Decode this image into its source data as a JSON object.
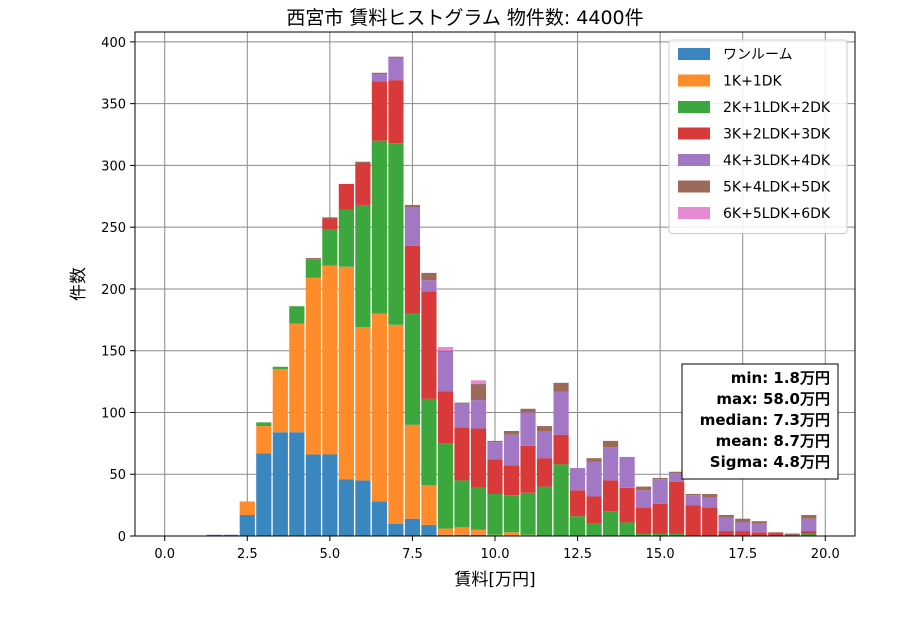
{
  "chart_data": {
    "type": "bar",
    "stacked": true,
    "title": "西宮市 賃料ヒストグラム 物件数: 4400件",
    "xlabel": "賃料[万円]",
    "ylabel": "件数",
    "xlim": [
      -0.9,
      20.9
    ],
    "ylim": [
      0,
      408
    ],
    "xticks": [
      0.0,
      2.5,
      5.0,
      7.5,
      10.0,
      12.5,
      15.0,
      17.5,
      20.0
    ],
    "xtick_labels": [
      "0.0",
      "2.5",
      "5.0",
      "7.5",
      "10.0",
      "12.5",
      "15.0",
      "17.5",
      "20.0"
    ],
    "yticks": [
      0,
      50,
      100,
      150,
      200,
      250,
      300,
      350,
      400
    ],
    "ytick_labels": [
      "0",
      "50",
      "100",
      "150",
      "200",
      "250",
      "300",
      "350",
      "400"
    ],
    "grid": true,
    "legend_position": "top-right",
    "bin_width": 0.5,
    "x": [
      1.5,
      2.0,
      2.5,
      3.0,
      3.5,
      4.0,
      4.5,
      5.0,
      5.5,
      6.0,
      6.5,
      7.0,
      7.5,
      8.0,
      8.5,
      9.0,
      9.5,
      10.0,
      10.5,
      11.0,
      11.5,
      12.0,
      12.5,
      13.0,
      13.5,
      14.0,
      14.5,
      15.0,
      15.5,
      16.0,
      16.5,
      17.0,
      17.5,
      18.0,
      18.5,
      19.0,
      19.5
    ],
    "series": [
      {
        "name": "ワンルーム",
        "color": "#3a87c0",
        "values": [
          1,
          1,
          17,
          67,
          84,
          84,
          66,
          66,
          46,
          45,
          28,
          10,
          14,
          9,
          1,
          1,
          1,
          0,
          0,
          0,
          0,
          0,
          0,
          0,
          0,
          0,
          0,
          0,
          0,
          0,
          0,
          0,
          0,
          0,
          0,
          0,
          0
        ]
      },
      {
        "name": "1K+1DK",
        "color": "#ff8c2a",
        "values": [
          0,
          0,
          11,
          22,
          51,
          88,
          143,
          153,
          172,
          124,
          152,
          161,
          76,
          32,
          5,
          6,
          4,
          1,
          3,
          1,
          0,
          0,
          0,
          0,
          0,
          0,
          0,
          0,
          0,
          0,
          0,
          0,
          0,
          0,
          0,
          0,
          0
        ]
      },
      {
        "name": "2K+1LDK+2DK",
        "color": "#3ca73c",
        "values": [
          0,
          0,
          0,
          3,
          2,
          14,
          15,
          29,
          46,
          99,
          140,
          147,
          90,
          70,
          69,
          38,
          34,
          33,
          30,
          34,
          40,
          58,
          16,
          10,
          20,
          11,
          2,
          2,
          2,
          0,
          0,
          0,
          0,
          0,
          0,
          0,
          2
        ]
      },
      {
        "name": "3K+2LDK+3DK",
        "color": "#d83a3a",
        "values": [
          0,
          0,
          0,
          0,
          0,
          0,
          0,
          9,
          21,
          34,
          48,
          51,
          55,
          87,
          42,
          43,
          48,
          28,
          24,
          38,
          23,
          24,
          21,
          22,
          25,
          28,
          21,
          24,
          42,
          25,
          23,
          4,
          4,
          3,
          2,
          0,
          2
        ]
      },
      {
        "name": "4K+3LDK+4DK",
        "color": "#a278c4",
        "values": [
          0,
          0,
          0,
          0,
          0,
          0,
          0,
          0,
          0,
          0,
          6,
          18,
          31,
          9,
          32,
          19,
          23,
          14,
          25,
          27,
          22,
          35,
          18,
          28,
          27,
          25,
          14,
          20,
          7,
          8,
          8,
          11,
          7,
          7,
          0,
          0,
          10
        ]
      },
      {
        "name": "5K+4LDK+5DK",
        "color": "#9b6a5a",
        "values": [
          0,
          0,
          0,
          0,
          0,
          0,
          1,
          1,
          0,
          1,
          1,
          1,
          2,
          6,
          1,
          1,
          13,
          1,
          3,
          3,
          4,
          7,
          0,
          3,
          5,
          0,
          3,
          1,
          1,
          1,
          3,
          2,
          3,
          2,
          1,
          2,
          3
        ]
      },
      {
        "name": "6K+5LDK+6DK",
        "color": "#e68ad1",
        "values": [
          0,
          0,
          0,
          0,
          0,
          0,
          0,
          0,
          0,
          0,
          0,
          0,
          0,
          0,
          3,
          0,
          3,
          0,
          0,
          0,
          0,
          0,
          0,
          0,
          0,
          0,
          0,
          0,
          0,
          0,
          0,
          0,
          0,
          0,
          0,
          0,
          0
        ]
      }
    ],
    "annotations": [
      "min: 1.8万円",
      "max: 58.0万円",
      "median: 7.3万円",
      "mean: 8.7万円",
      "Sigma: 4.8万円"
    ]
  }
}
